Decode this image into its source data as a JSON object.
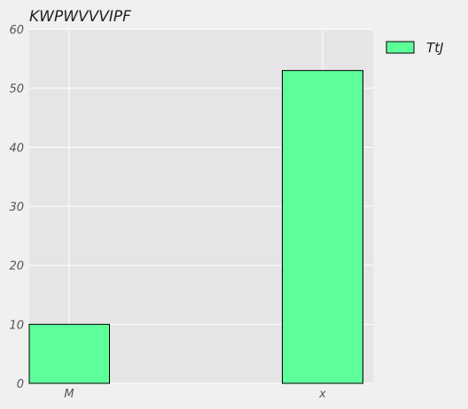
{
  "chart_data": {
    "type": "bar",
    "title": "KWPWVVVIPF",
    "xlabel": "",
    "ylabel": "",
    "categories": [
      "M",
      "x"
    ],
    "series": [
      {
        "name": "TtJ",
        "values": [
          10,
          53
        ]
      }
    ],
    "ylim": [
      0,
      60
    ],
    "yticks": [
      0,
      10,
      20,
      30,
      40,
      50,
      60
    ],
    "grid": true,
    "legend_position": "top-right",
    "colors": {
      "bar_fill": "#5cff99",
      "bar_edge": "#000000",
      "plot_background": "#e5e5e5",
      "figure_background": "#f0f0f0",
      "grid": "#ffffff"
    }
  }
}
